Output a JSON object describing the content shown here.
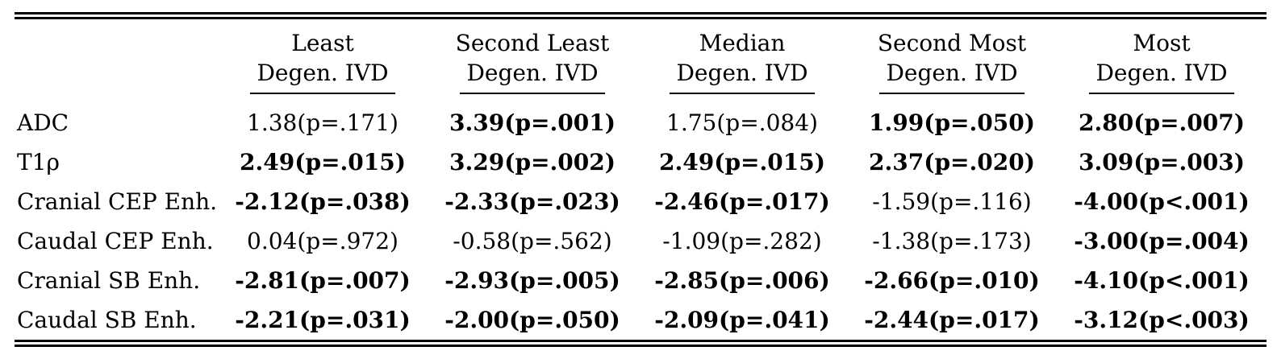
{
  "colors": {
    "text": "#000000",
    "background": "#ffffff",
    "rules": "#000000"
  },
  "table": {
    "header": {
      "corner": "",
      "columns": [
        {
          "line1": "Least",
          "line2": "Degen. IVD"
        },
        {
          "line1": "Second Least",
          "line2": "Degen. IVD"
        },
        {
          "line1": "Median",
          "line2": "Degen. IVD"
        },
        {
          "line1": "Second Most",
          "line2": "Degen. IVD"
        },
        {
          "line1": "Most",
          "line2": "Degen. IVD"
        }
      ]
    },
    "rows": [
      {
        "label": "ADC",
        "cells": [
          {
            "text": "1.38(p=.171)",
            "bold": false
          },
          {
            "text": "3.39(p=.001)",
            "bold": true
          },
          {
            "text": "1.75(p=.084)",
            "bold": false
          },
          {
            "text": "1.99(p=.050)",
            "bold": true
          },
          {
            "text": "2.80(p=.007)",
            "bold": true
          }
        ]
      },
      {
        "label": "T1ρ",
        "cells": [
          {
            "text": "2.49(p=.015)",
            "bold": true
          },
          {
            "text": "3.29(p=.002)",
            "bold": true
          },
          {
            "text": "2.49(p=.015)",
            "bold": true
          },
          {
            "text": "2.37(p=.020)",
            "bold": true
          },
          {
            "text": "3.09(p=.003)",
            "bold": true
          }
        ]
      },
      {
        "label": "Cranial CEP Enh.",
        "cells": [
          {
            "text": "-2.12(p=.038)",
            "bold": true
          },
          {
            "text": "-2.33(p=.023)",
            "bold": true
          },
          {
            "text": "-2.46(p=.017)",
            "bold": true
          },
          {
            "text": "-1.59(p=.116)",
            "bold": false
          },
          {
            "text": "-4.00(p<.001)",
            "bold": true
          }
        ]
      },
      {
        "label": "Caudal CEP Enh.",
        "cells": [
          {
            "text": "0.04(p=.972)",
            "bold": false
          },
          {
            "text": "-0.58(p=.562)",
            "bold": false
          },
          {
            "text": "-1.09(p=.282)",
            "bold": false
          },
          {
            "text": "-1.38(p=.173)",
            "bold": false
          },
          {
            "text": "-3.00(p=.004)",
            "bold": true
          }
        ]
      },
      {
        "label": "Cranial SB Enh.",
        "cells": [
          {
            "text": "-2.81(p=.007)",
            "bold": true
          },
          {
            "text": "-2.93(p=.005)",
            "bold": true
          },
          {
            "text": "-2.85(p=.006)",
            "bold": true
          },
          {
            "text": "-2.66(p=.010)",
            "bold": true
          },
          {
            "text": "-4.10(p<.001)",
            "bold": true
          }
        ]
      },
      {
        "label": "Caudal SB Enh.",
        "cells": [
          {
            "text": "-2.21(p=.031)",
            "bold": true
          },
          {
            "text": "-2.00(p=.050)",
            "bold": true
          },
          {
            "text": "-2.09(p=.041)",
            "bold": true
          },
          {
            "text": "-2.44(p=.017)",
            "bold": true
          },
          {
            "text": "-3.12(p<.003)",
            "bold": true
          }
        ]
      }
    ]
  }
}
